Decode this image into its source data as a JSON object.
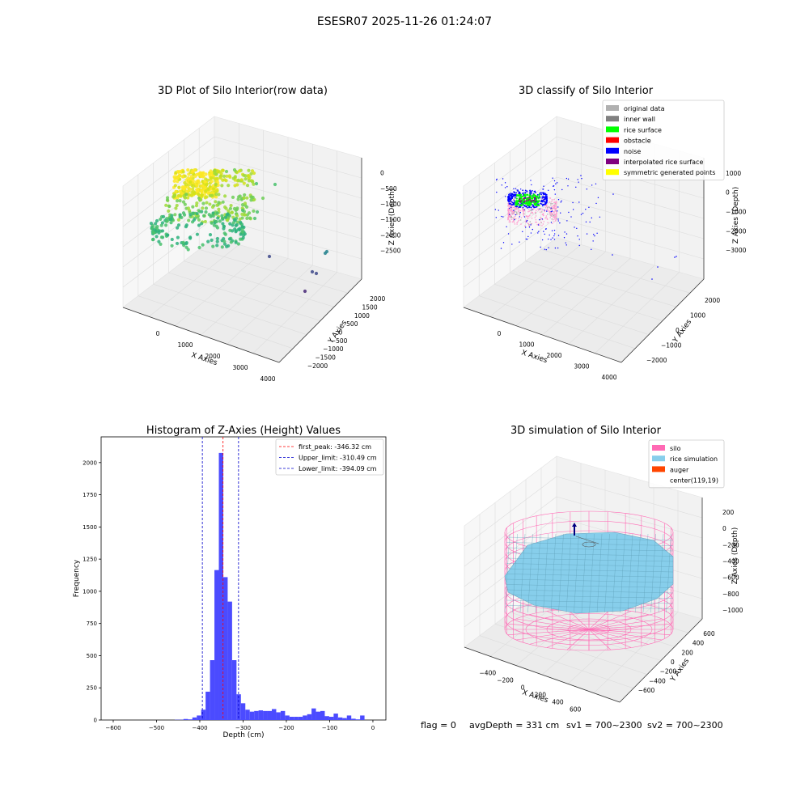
{
  "figure": {
    "suptitle": "ESESR07 2025-11-26 01:24:07",
    "footer": {
      "flag": "flag = 0",
      "avg_depth": "avgDepth = 331 cm",
      "sv1": "sv1 = 700~2300",
      "sv2": "sv2 = 700~2300"
    }
  },
  "colors": {
    "hist_bar": "#4b4bff",
    "first_peak": "#ff0000",
    "limits": "#0000cc",
    "pane": "#f2f2f2",
    "silo": "#ff69b4",
    "rice": "#87ceeb",
    "auger": "#ff4500"
  },
  "chart_data": [
    {
      "type": "scatter3d",
      "title": "3D Plot of Silo Interior(row data)",
      "xlabel": "X Axies",
      "ylabel": "Y Axies",
      "zlabel": "Z Axies (Depth)",
      "xticks": [
        "0",
        "1000",
        "2000",
        "3000",
        "4000"
      ],
      "yticks": [
        "2000",
        "1500",
        "1000",
        "500",
        "0",
        "−500",
        "−1000",
        "−1500",
        "−2000"
      ],
      "zticks": [
        "0",
        "−500",
        "−1000",
        "−1500",
        "−2000",
        "−2500"
      ],
      "colormap": "viridis"
    },
    {
      "type": "scatter3d",
      "title": "3D classify of Silo Interior",
      "xlabel": "X Axies",
      "ylabel": "Y Axies",
      "zlabel": "Z Axies (Depth)",
      "xticks": [
        "0",
        "1000",
        "2000",
        "3000",
        "4000"
      ],
      "yticks": [
        "2000",
        "1000",
        "0",
        "−1000",
        "−2000"
      ],
      "zticks": [
        "1000",
        "0",
        "−1000",
        "−2000",
        "−3000"
      ],
      "legend_position": "top-right",
      "legend": [
        {
          "label": "original data",
          "color": "#b0b0b0"
        },
        {
          "label": "inner wall",
          "color": "#808080"
        },
        {
          "label": "rice surface",
          "color": "#00ff00"
        },
        {
          "label": "obstacle",
          "color": "#ff0000"
        },
        {
          "label": "noise",
          "color": "#0000ff"
        },
        {
          "label": "interpolated rice surface",
          "color": "#800080"
        },
        {
          "label": "symmetric generated points",
          "color": "#ffff00"
        }
      ]
    },
    {
      "type": "bar",
      "title": "Histogram of Z-Axies (Height) Values",
      "xlabel": "Depth (cm)",
      "ylabel": "Frequency",
      "xlim": [
        -628,
        30
      ],
      "ylim": [
        0,
        2200
      ],
      "xticks": [
        -600,
        -500,
        -400,
        -300,
        -200,
        -100,
        0
      ],
      "yticks": [
        0,
        250,
        500,
        750,
        1000,
        1250,
        1500,
        1750,
        2000
      ],
      "bin_width": 10.2,
      "bins": [
        [
          -458,
          2
        ],
        [
          -447.8,
          2
        ],
        [
          -437.6,
          8
        ],
        [
          -427.4,
          5
        ],
        [
          -417.2,
          20
        ],
        [
          -407,
          35
        ],
        [
          -396.8,
          80
        ],
        [
          -386.6,
          220
        ],
        [
          -376.4,
          465
        ],
        [
          -366.2,
          1165
        ],
        [
          -356,
          2075
        ],
        [
          -345.8,
          1110
        ],
        [
          -335.6,
          920
        ],
        [
          -325.4,
          465
        ],
        [
          -315.2,
          200
        ],
        [
          -305,
          130
        ],
        [
          -294.8,
          80
        ],
        [
          -284.6,
          65
        ],
        [
          -274.4,
          70
        ],
        [
          -264.2,
          75
        ],
        [
          -254,
          70
        ],
        [
          -243.8,
          70
        ],
        [
          -233.6,
          85
        ],
        [
          -223.4,
          60
        ],
        [
          -213.2,
          70
        ],
        [
          -203,
          35
        ],
        [
          -192.8,
          25
        ],
        [
          -182.6,
          25
        ],
        [
          -172.4,
          25
        ],
        [
          -162.2,
          35
        ],
        [
          -152,
          45
        ],
        [
          -141.8,
          90
        ],
        [
          -131.6,
          65
        ],
        [
          -121.4,
          70
        ],
        [
          -111.2,
          30
        ],
        [
          -101,
          25
        ],
        [
          -90.8,
          50
        ],
        [
          -80.6,
          20
        ],
        [
          -70.4,
          15
        ],
        [
          -60.2,
          35
        ],
        [
          -50,
          10
        ],
        [
          -39.8,
          5
        ],
        [
          -29.6,
          35
        ]
      ],
      "vlines": [
        {
          "label": "first_peak: -346.32 cm",
          "x": -346.32,
          "color": "#ff0000"
        },
        {
          "label": "Upper_limit: -310.49 cm",
          "x": -310.49,
          "color": "#0000cc"
        },
        {
          "label": "Lower_limit: -394.09 cm",
          "x": -394.09,
          "color": "#0000cc"
        }
      ],
      "legend_position": "top-right"
    },
    {
      "type": "surface3d",
      "title": "3D simulation of Silo Interior",
      "xlabel": "X Axies",
      "ylabel": "Y Axies",
      "zlabel": "Z Axies (Depth)",
      "xticks": [
        "−400",
        "−200",
        "0",
        "200",
        "400",
        "600"
      ],
      "yticks": [
        "600",
        "400",
        "200",
        "0",
        "−200",
        "−400",
        "−600"
      ],
      "zticks": [
        "200",
        "0",
        "−200",
        "−400",
        "−600",
        "−800",
        "−1000"
      ],
      "legend_position": "top-right",
      "legend": [
        {
          "label": "silo",
          "color": "#ff69b4"
        },
        {
          "label": "rice simulation",
          "color": "#87ceeb"
        },
        {
          "label": "auger",
          "color": "#ff4500"
        },
        {
          "label": "center(119,19)",
          "color": ""
        }
      ]
    }
  ]
}
